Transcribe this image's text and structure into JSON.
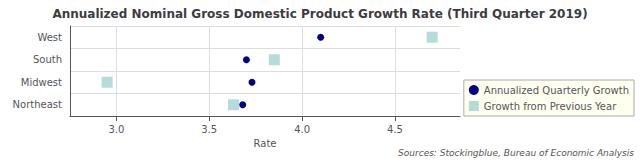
{
  "chart_data": {
    "type": "scatter",
    "title": "Annualized Nominal Gross Domestic Product Growth Rate (Third Quarter 2019)",
    "categories": [
      "West",
      "South",
      "Midwest",
      "Northeast"
    ],
    "series": [
      {
        "name": "Annualized Quarterly Growth",
        "color": "#00008B",
        "marker": "circle",
        "values": [
          4.1,
          3.7,
          3.73,
          3.68
        ]
      },
      {
        "name": "Growth from Previous Year",
        "color": "#9ECFCF",
        "marker": "square",
        "values": [
          4.7,
          3.85,
          2.95,
          3.63
        ]
      }
    ],
    "xlabel": "Rate",
    "xlim": [
      2.75,
      4.85
    ],
    "xticks": [
      {
        "value": 3.0,
        "label": "3.0"
      },
      3.5,
      {
        "value": 4.0,
        "label": "4.0"
      },
      4.5
    ],
    "grid": true,
    "legend": "lower right",
    "annotations": [
      "Sources: Stockingblue, Bureau of Economic Analysis"
    ]
  }
}
